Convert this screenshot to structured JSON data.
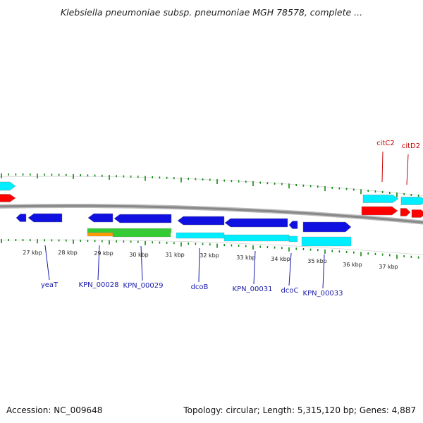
{
  "header": {
    "title": "Klebsiella pneumoniae subsp. pneumoniae MGH 78578, complete ..."
  },
  "footer": {
    "accession": "Accession: NC_009648",
    "summary": "Topology: circular; Length: 5,315,120 bp; Genes: 4,887"
  },
  "colors": {
    "backbone": "#888888",
    "ticks": "#118811",
    "forward_label": "#cc0000",
    "reverse_label": "#1a1aaa",
    "gene_blue": "#1010e0",
    "gene_cyan": "#00eeff",
    "gene_red": "#ff0000",
    "gene_green": "#33cc33",
    "gene_orange": "#ff9900"
  },
  "axis_labels": [
    "27 kbp",
    "28 kbp",
    "29 kbp",
    "30 kbp",
    "31 kbp",
    "32 kbp",
    "33 kbp",
    "34 kbp",
    "35 kbp",
    "36 kbp",
    "37 kbp"
  ],
  "gene_labels": {
    "top": [
      "citC2",
      "citD2"
    ],
    "bottom": [
      "yeaT",
      "KPN_00028",
      "KPN_00029",
      "dcoB",
      "KPN_00031",
      "dcoC",
      "KPN_00033"
    ]
  }
}
